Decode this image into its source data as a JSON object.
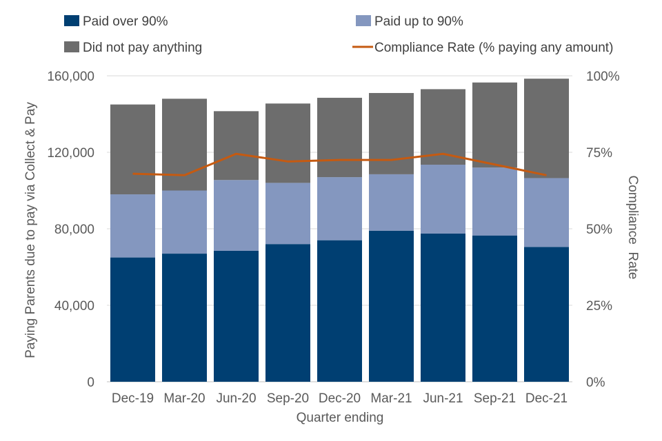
{
  "chart_data": {
    "type": "bar",
    "stacked": true,
    "categories": [
      "Dec-19",
      "Mar-20",
      "Jun-20",
      "Sep-20",
      "Dec-20",
      "Mar-21",
      "Jun-21",
      "Sep-21",
      "Dec-21"
    ],
    "series": [
      {
        "name": "Paid over 90%",
        "color": "#003f72",
        "values": [
          65000,
          67000,
          68500,
          72000,
          74000,
          79000,
          77500,
          76500,
          70500
        ]
      },
      {
        "name": "Paid up to 90%",
        "color": "#8497bf",
        "values": [
          33000,
          33000,
          37000,
          32000,
          33000,
          29500,
          36000,
          35500,
          36000
        ]
      },
      {
        "name": "Did not pay anything",
        "color": "#6d6d6d",
        "values": [
          47000,
          48000,
          36000,
          41500,
          41500,
          42500,
          39500,
          44500,
          52000
        ]
      }
    ],
    "line_series": {
      "name": "Compliance Rate (% paying any amount)",
      "color": "#c55a11",
      "axis": "right",
      "values": [
        0.68,
        0.675,
        0.745,
        0.72,
        0.725,
        0.725,
        0.745,
        0.71,
        0.675
      ]
    },
    "xlabel": "Quarter ending",
    "ylabel": "Paying Parents due to pay via Collect & Pay",
    "y2label": "Compliance  Rate",
    "ylim": [
      0,
      160000
    ],
    "yticks": [
      0,
      40000,
      80000,
      120000,
      160000
    ],
    "ytick_labels": [
      "0",
      "40,000",
      "80,000",
      "120,000",
      "160,000"
    ],
    "y2lim": [
      0,
      1
    ],
    "y2ticks": [
      0,
      0.25,
      0.5,
      0.75,
      1
    ],
    "y2tick_labels": [
      "0%",
      "25%",
      "50%",
      "75%",
      "100%"
    ],
    "legend": [
      {
        "label": "Paid over 90%",
        "marker": "square",
        "color": "#003f72"
      },
      {
        "label": "Paid up to 90%",
        "marker": "square",
        "color": "#8497bf"
      },
      {
        "label": "Did not pay anything",
        "marker": "square",
        "color": "#6d6d6d"
      },
      {
        "label": "Compliance Rate (% paying any amount)",
        "marker": "line",
        "color": "#c55a11"
      }
    ],
    "legend_position": "top",
    "grid": "horizontal"
  }
}
